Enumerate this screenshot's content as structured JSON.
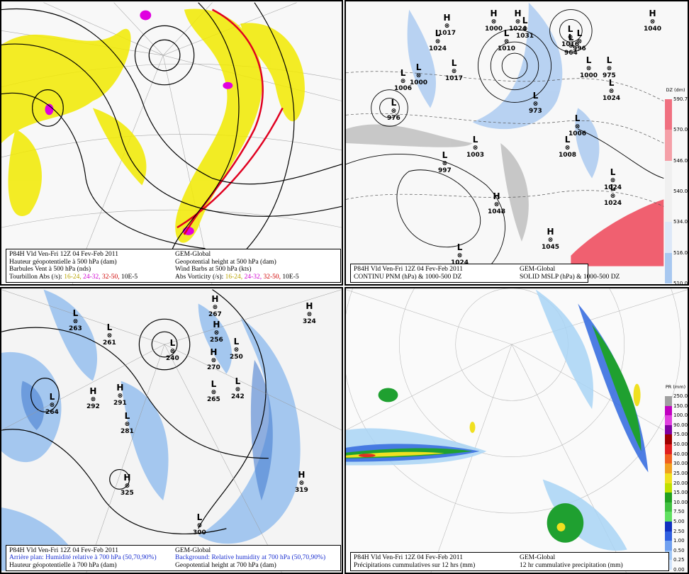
{
  "panels": [
    {
      "lines": [
        [
          "P84H Vld Ven-Fri 12Z 04 Fev-Feb 2011",
          "GEM-Global"
        ],
        [
          "Hauteur géopotentielle à 500 hPa (dam)",
          "Geopotential height at 500 hPa (dam)"
        ],
        [
          "Barbules Vent à 500 hPa (nds)",
          "Wind Barbs at 500 hPa  (kts)"
        ]
      ],
      "vort_fr": "Tourbillon Abs (/s):",
      "vort_en": "Abs Vorticity (/s):",
      "vort_ranges": [
        "16-24,",
        "24-32,",
        "32-50,",
        "10E-5"
      ]
    },
    {
      "lines": [
        [
          "P84H Vld Ven-Fri 12Z 04 Fev-Feb 2011",
          "GEM-Global"
        ],
        [
          "CONTINU PNM  (hPa) & 1000-500 DZ",
          "SOLID  MSLP (hPa) & 1000-500 DZ"
        ]
      ],
      "centers": [
        {
          "t": "H",
          "v": "1017"
        },
        {
          "t": "H",
          "v": "1000"
        },
        {
          "t": "H",
          "v": "1024"
        },
        {
          "t": "L",
          "v": "1031"
        },
        {
          "t": "L",
          "v": "1024"
        },
        {
          "t": "L",
          "v": "1010"
        },
        {
          "t": "L",
          "v": "1016"
        },
        {
          "t": "L",
          "v": "996"
        },
        {
          "t": "H",
          "v": "1040"
        },
        {
          "t": "L",
          "v": "1000"
        },
        {
          "t": "L",
          "v": "1006"
        },
        {
          "t": "L",
          "v": "1017"
        },
        {
          "t": "L",
          "v": "975"
        },
        {
          "t": "L",
          "v": "964"
        },
        {
          "t": "L",
          "v": "976"
        },
        {
          "t": "L",
          "v": "973"
        },
        {
          "t": "L",
          "v": "1000"
        },
        {
          "t": "L",
          "v": "1006"
        },
        {
          "t": "L",
          "v": "1003"
        },
        {
          "t": "L",
          "v": "997"
        },
        {
          "t": "L",
          "v": "1008"
        },
        {
          "t": "H",
          "v": "1048"
        },
        {
          "t": "H",
          "v": "1045"
        },
        {
          "t": "L",
          "v": "1024"
        },
        {
          "t": "L",
          "v": "1024"
        },
        {
          "t": "L",
          "v": "1024"
        },
        {
          "t": "L",
          "v": "1024"
        }
      ],
      "colorbar": {
        "unit": "DZ (dm)",
        "labels": [
          "590.75",
          "570.00",
          "546.00",
          "540.00",
          "534.00",
          "516.00",
          "510.00"
        ]
      }
    },
    {
      "lines": [
        [
          "P84H Vld Ven-Fri 12Z 04 Fev-Feb 2011",
          "GEM-Global"
        ],
        [
          "Arrière plan: Humidité relative à 700 hPa (50,70,90%)",
          "Background: Relative humidity at 700 hPa (50,70,90%)"
        ],
        [
          "Hauteur géopotentielle à 700 hPa (dam)",
          "Geopotential height at 700 hPa (dam)"
        ]
      ],
      "centers": [
        {
          "t": "L",
          "v": "263"
        },
        {
          "t": "L",
          "v": "261"
        },
        {
          "t": "L",
          "v": "264"
        },
        {
          "t": "H",
          "v": "292"
        },
        {
          "t": "H",
          "v": "291"
        },
        {
          "t": "L",
          "v": "281"
        },
        {
          "t": "L",
          "v": "240"
        },
        {
          "t": "H",
          "v": "267"
        },
        {
          "t": "H",
          "v": "256"
        },
        {
          "t": "L",
          "v": "250"
        },
        {
          "t": "H",
          "v": "270"
        },
        {
          "t": "L",
          "v": "265"
        },
        {
          "t": "L",
          "v": "242"
        },
        {
          "t": "H",
          "v": "324"
        },
        {
          "t": "H",
          "v": "325"
        },
        {
          "t": "H",
          "v": "319"
        },
        {
          "t": "L",
          "v": "300"
        }
      ]
    },
    {
      "lines": [
        [
          "P84H Vld Ven-Fri 12Z 04 Fev-Feb 2011",
          "GEM-Global"
        ],
        [
          "Précipitations cummulatives sur 12 hrs (mm)",
          "12 hr cummulative precipitation      (mm)"
        ]
      ],
      "colorbar": {
        "unit": "PR (mm)",
        "labels": [
          "250.00",
          "150.00",
          "100.00",
          "90.00",
          "75.00",
          "50.00",
          "40.00",
          "30.00",
          "25.00",
          "20.00",
          "15.00",
          "10.00",
          "7.50",
          "5.00",
          "2.50",
          "1.00",
          "0.50",
          "0.25",
          "0.00"
        ]
      }
    }
  ],
  "colors": {
    "vort_yellow": "#f2ea00",
    "vort_magenta": "#e000e0",
    "vort_red": "#e00020",
    "rh_blue": "#8ab8ee",
    "dz_red": "#f06070",
    "dz_blue": "#a8c8f0"
  }
}
